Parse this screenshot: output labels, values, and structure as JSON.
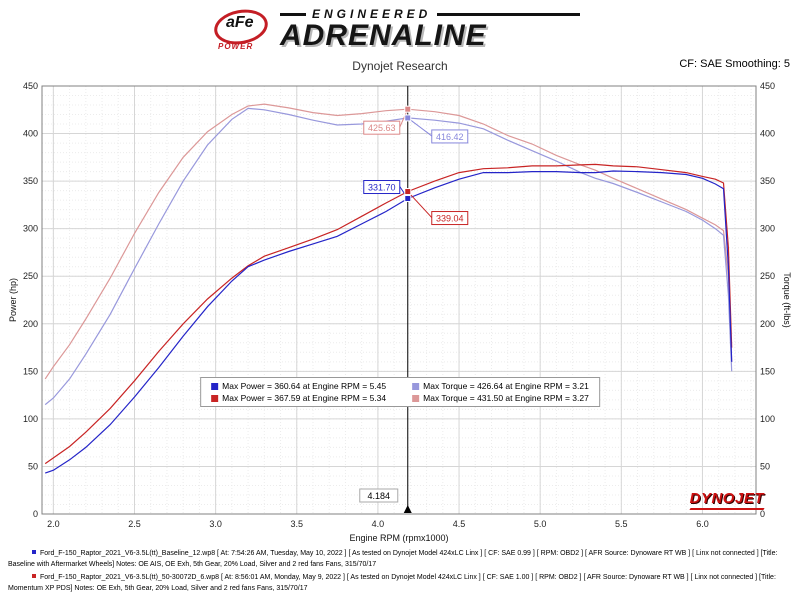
{
  "header": {
    "brand": {
      "badge_top": "aFe",
      "badge_bottom": "POWER",
      "line1": "ENGINEERED",
      "line2": "ADRENALINE"
    },
    "subtitle": "Dynojet Research",
    "smoothing_label": "CF: SAE Smoothing: 5"
  },
  "chart_data": {
    "type": "line",
    "title": "Dynojet Research",
    "xlabel": "Engine RPM (rpmx1000)",
    "ylabel_left": "Power (hp)",
    "ylabel_right": "Torque (ft-lbs)",
    "xlim": [
      1.93,
      6.33
    ],
    "ylim": [
      0,
      450
    ],
    "x_ticks": [
      2.0,
      2.5,
      3.0,
      3.5,
      4.0,
      4.5,
      5.0,
      5.5,
      6.0
    ],
    "y_ticks": [
      0,
      50,
      100,
      150,
      200,
      250,
      300,
      350,
      400,
      450
    ],
    "grid": true,
    "x": [
      1.95,
      2.0,
      2.1,
      2.2,
      2.35,
      2.5,
      2.65,
      2.8,
      2.95,
      3.1,
      3.2,
      3.3,
      3.45,
      3.6,
      3.75,
      3.9,
      4.05,
      4.184,
      4.35,
      4.5,
      4.65,
      4.8,
      4.95,
      5.1,
      5.25,
      5.34,
      5.45,
      5.6,
      5.75,
      5.9,
      6.0,
      6.08,
      6.13,
      6.16,
      6.18
    ],
    "series": [
      {
        "name": "power-baseline",
        "color": "#2424c8",
        "axis": "left",
        "values": [
          43,
          46,
          57,
          70,
          94,
          123,
          154,
          187,
          218,
          245,
          260,
          267,
          276,
          284,
          292,
          305,
          318,
          331.7,
          343,
          352,
          359,
          359,
          360,
          360,
          359,
          359,
          360.64,
          360,
          359,
          357,
          353,
          347,
          342,
          260,
          160
        ]
      },
      {
        "name": "power-momentum-xp",
        "color": "#c82424",
        "axis": "left",
        "values": [
          53,
          59,
          71,
          86,
          111,
          140,
          171,
          200,
          226,
          248,
          261,
          271,
          280,
          289,
          299,
          313,
          327,
          339.04,
          350,
          359,
          363,
          364,
          366,
          366,
          367,
          367.59,
          366,
          365,
          362,
          359,
          355,
          352,
          348,
          280,
          175
        ]
      },
      {
        "name": "torque-baseline",
        "color": "#9898dc",
        "axis": "right",
        "values": [
          115,
          122,
          142,
          168,
          210,
          258,
          305,
          350,
          388,
          415,
          426.5,
          425,
          420,
          414,
          409,
          410,
          413,
          416.42,
          414,
          411,
          405,
          393,
          382,
          371,
          359,
          353,
          347.5,
          338,
          328,
          318,
          309,
          300,
          293,
          230,
          150
        ]
      },
      {
        "name": "torque-momentum-xp",
        "color": "#dc9898",
        "axis": "right",
        "values": [
          142,
          155,
          178,
          205,
          248,
          295,
          338,
          375,
          402,
          420,
          429,
          431,
          427,
          422,
          419,
          421,
          424,
          425.63,
          423,
          419,
          410,
          398,
          389,
          377,
          367,
          361.5,
          353,
          342,
          331,
          320,
          311,
          304,
          298,
          250,
          160
        ]
      }
    ],
    "cursor": {
      "x": 4.184,
      "label": "4.184",
      "readouts": [
        {
          "text": "425.63",
          "color": "#dc8888"
        },
        {
          "text": "416.42",
          "color": "#8888dc"
        },
        {
          "text": "331.70",
          "color": "#2424c8"
        },
        {
          "text": "339.04",
          "color": "#c82424"
        }
      ]
    },
    "legend": [
      {
        "color": "#2424c8",
        "label": "Max Power = 360.64 at Engine RPM = 5.45"
      },
      {
        "color": "#9898dc",
        "label": "Max Torque = 426.64 at Engine RPM = 3.21"
      },
      {
        "color": "#c82424",
        "label": "Max Power = 367.59 at Engine RPM = 5.34"
      },
      {
        "color": "#dc9898",
        "label": "Max Torque = 431.50 at Engine RPM = 3.27"
      }
    ],
    "legend_position": "bottom-center-inside",
    "watermark": "DYNOJET"
  },
  "footer": {
    "runs": [
      {
        "color": "#2424c8",
        "text": "Ford_F-150_Raptor_2021_V6-3.5L(tt)_Baseline_12.wp8 [ At: 7:54:26 AM, Tuesday, May 10, 2022 ] [ As tested on Dynojet Model 424xLC Linx ] [ CF: SAE 0.99 ] [ RPM: OBD2 ] [ AFR Source: Dynoware RT WB ] [ Linx not connected ] [Title: Baseline with Aftermarket Wheels]  Notes: OE AIS, OE Exh, 5th Gear, 20% Load, Silver and 2 red fans Fans, 315/70/17"
      },
      {
        "color": "#c82424",
        "text": "Ford_F-150_Raptor_2021_V6-3.5L(tt)_50-30072D_6.wp8 [ At: 8:56:01 AM, Monday, May 9, 2022 ] [ As tested on Dynojet Model 424xLC Linx ] [ CF: SAE 1.00 ] [ RPM: OBD2 ] [ AFR Source: Dynoware RT WB ] [ Linx not connected ] [Title: Momentum XP PDS]  Notes: OE Exh, 5th Gear, 20% Load, Silver and 2 red fans Fans, 315/70/17"
      }
    ]
  }
}
